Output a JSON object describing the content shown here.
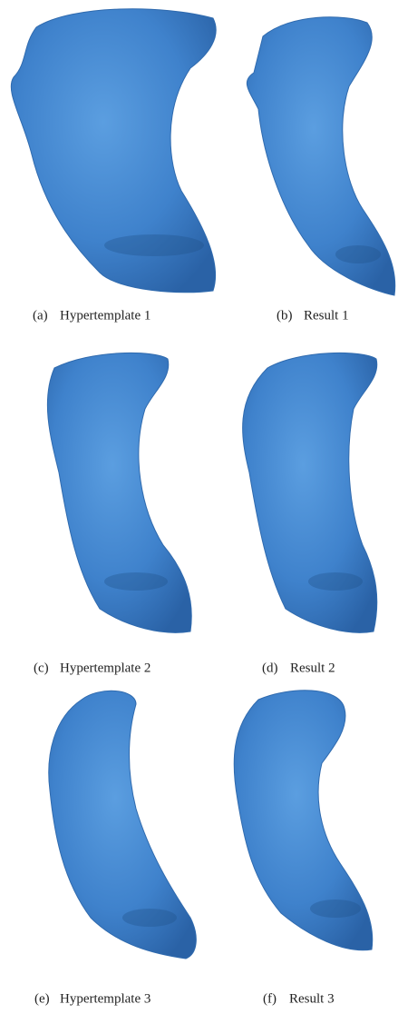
{
  "panels": [
    {
      "label": "(a)",
      "caption": "Hypertemplate 1"
    },
    {
      "label": "(b)",
      "caption": "Result 1"
    },
    {
      "label": "(c)",
      "caption": "Hypertemplate 2"
    },
    {
      "label": "(d)",
      "caption": "Result 2"
    },
    {
      "label": "(e)",
      "caption": "Hypertemplate 3"
    },
    {
      "label": "(f)",
      "caption": "Result 3"
    }
  ]
}
